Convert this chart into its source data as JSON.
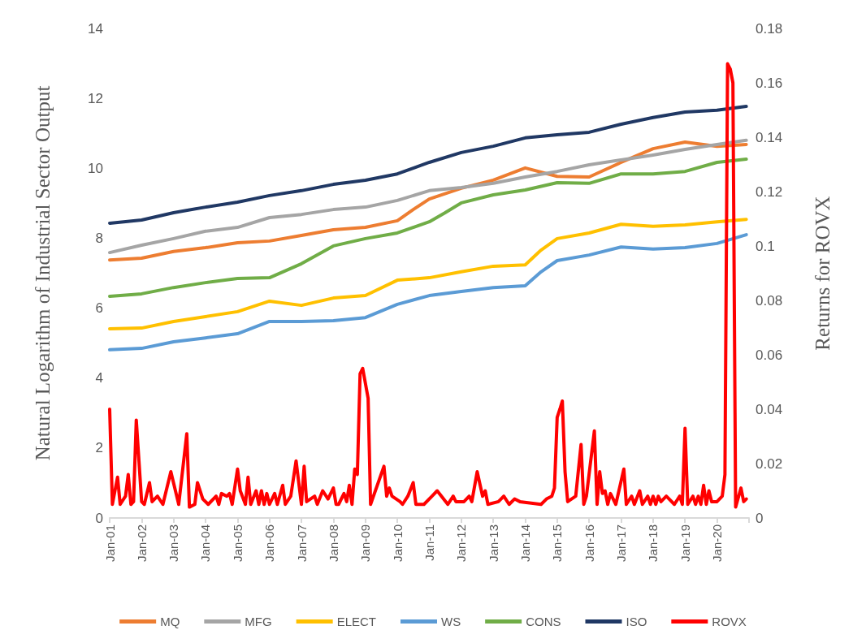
{
  "chart_data": {
    "type": "line",
    "ylabel": "Natural Logarithm of Industrial Sector Output",
    "y2label": "Returns for ROVX",
    "xlim": [
      "2001-01",
      "2021-01"
    ],
    "xticks": [
      {
        "value": "2001-01",
        "label": "Jan-01"
      },
      {
        "value": "2002-01",
        "label": "Jan-02"
      },
      {
        "value": "2003-01",
        "label": "Jan-03"
      },
      {
        "value": "2004-01",
        "label": "Jan-04"
      },
      {
        "value": "2005-01",
        "label": "Jan-05"
      },
      {
        "value": "2006-01",
        "label": "Jan-06"
      },
      {
        "value": "2007-01",
        "label": "Jan-07"
      },
      {
        "value": "2008-01",
        "label": "Jan-08"
      },
      {
        "value": "2009-01",
        "label": "Jan-09"
      },
      {
        "value": "2010-01",
        "label": "Jan-10"
      },
      {
        "value": "2011-01",
        "label": "Jan-11"
      },
      {
        "value": "2012-01",
        "label": "Jan-12"
      },
      {
        "value": "2013-01",
        "label": "Jan-13"
      },
      {
        "value": "2014-01",
        "label": "Jan-14"
      },
      {
        "value": "2015-01",
        "label": "Jan-15"
      },
      {
        "value": "2016-01",
        "label": "Jan-16"
      },
      {
        "value": "2017-01",
        "label": "Jan-17"
      },
      {
        "value": "2018-01",
        "label": "Jan-18"
      },
      {
        "value": "2019-01",
        "label": "Jan-19"
      },
      {
        "value": "2020-01",
        "label": "Jan-20"
      },
      {
        "value": "2021-01",
        "label": null
      }
    ],
    "ylim": [
      0,
      14
    ],
    "yticks": [
      0,
      2,
      4,
      6,
      8,
      10,
      12,
      14
    ],
    "y2lim": [
      0,
      0.18
    ],
    "y2ticks": [
      0,
      0.02,
      0.04,
      0.06,
      0.08,
      0.1,
      0.12,
      0.14,
      0.16,
      0.18
    ],
    "grid": false,
    "legend": "bottom",
    "marker": "none",
    "line_style": "solid",
    "series": [
      {
        "name": "MQ",
        "color": "#ed7d31",
        "x": [
          "2001-01",
          "2002-01",
          "2003-01",
          "2004-01",
          "2005-01",
          "2006-01",
          "2007-01",
          "2008-01",
          "2009-01",
          "2010-01",
          "2010-07",
          "2011-01",
          "2012-01",
          "2013-01",
          "2014-01",
          "2015-01",
          "2016-01",
          "2017-01",
          "2018-01",
          "2019-01",
          "2020-01",
          "2020-12"
        ],
        "values": [
          7.38,
          7.43,
          7.62,
          7.73,
          7.87,
          7.92,
          8.08,
          8.24,
          8.31,
          8.5,
          8.82,
          9.12,
          9.43,
          9.66,
          10.01,
          9.77,
          9.75,
          10.17,
          10.56,
          10.75,
          10.63,
          10.68
        ]
      },
      {
        "name": "MFG",
        "color": "#a5a5a5",
        "x": [
          "2001-01",
          "2002-01",
          "2003-01",
          "2004-01",
          "2005-01",
          "2006-01",
          "2007-01",
          "2008-01",
          "2009-01",
          "2010-01",
          "2011-01",
          "2012-01",
          "2013-01",
          "2014-01",
          "2015-01",
          "2016-01",
          "2017-01",
          "2018-01",
          "2019-01",
          "2020-01",
          "2020-12"
        ],
        "values": [
          7.59,
          7.8,
          7.99,
          8.2,
          8.31,
          8.59,
          8.68,
          8.82,
          8.89,
          9.08,
          9.36,
          9.45,
          9.57,
          9.75,
          9.91,
          10.1,
          10.24,
          10.38,
          10.54,
          10.68,
          10.8
        ]
      },
      {
        "name": "ELECT",
        "color": "#ffc000",
        "x": [
          "2001-01",
          "2002-01",
          "2003-01",
          "2004-01",
          "2005-01",
          "2006-01",
          "2007-01",
          "2008-01",
          "2009-01",
          "2010-01",
          "2011-01",
          "2012-01",
          "2013-01",
          "2014-01",
          "2014-07",
          "2015-01",
          "2016-01",
          "2017-01",
          "2018-01",
          "2019-01",
          "2020-01",
          "2020-12"
        ],
        "values": [
          5.41,
          5.43,
          5.62,
          5.76,
          5.9,
          6.2,
          6.08,
          6.29,
          6.36,
          6.8,
          6.87,
          7.04,
          7.2,
          7.24,
          7.66,
          7.99,
          8.15,
          8.4,
          8.34,
          8.38,
          8.47,
          8.54
        ]
      },
      {
        "name": "WS",
        "color": "#5b9bd5",
        "x": [
          "2001-01",
          "2002-01",
          "2003-01",
          "2004-01",
          "2005-01",
          "2006-01",
          "2007-01",
          "2008-01",
          "2009-01",
          "2010-01",
          "2011-01",
          "2012-01",
          "2013-01",
          "2014-01",
          "2014-07",
          "2015-01",
          "2016-01",
          "2017-01",
          "2018-01",
          "2019-01",
          "2020-01",
          "2020-12"
        ],
        "values": [
          4.81,
          4.85,
          5.04,
          5.15,
          5.27,
          5.62,
          5.62,
          5.64,
          5.73,
          6.11,
          6.36,
          6.48,
          6.59,
          6.64,
          7.04,
          7.36,
          7.52,
          7.75,
          7.69,
          7.73,
          7.85,
          8.1
        ]
      },
      {
        "name": "CONS",
        "color": "#70ad47",
        "x": [
          "2001-01",
          "2002-01",
          "2003-01",
          "2004-01",
          "2005-01",
          "2006-01",
          "2007-01",
          "2008-01",
          "2009-01",
          "2010-01",
          "2011-01",
          "2011-07",
          "2012-01",
          "2013-01",
          "2014-01",
          "2015-01",
          "2016-01",
          "2017-01",
          "2018-01",
          "2019-01",
          "2020-01",
          "2020-12"
        ],
        "values": [
          6.34,
          6.41,
          6.59,
          6.73,
          6.85,
          6.87,
          7.27,
          7.78,
          7.99,
          8.15,
          8.47,
          8.73,
          9.01,
          9.24,
          9.38,
          9.59,
          9.57,
          9.84,
          9.84,
          9.91,
          10.17,
          10.26
        ]
      },
      {
        "name": "ISO",
        "color": "#203864",
        "x": [
          "2001-01",
          "2002-01",
          "2003-01",
          "2004-01",
          "2005-01",
          "2006-01",
          "2007-01",
          "2008-01",
          "2009-01",
          "2010-01",
          "2011-01",
          "2012-01",
          "2013-01",
          "2014-01",
          "2015-01",
          "2016-01",
          "2017-01",
          "2018-01",
          "2019-01",
          "2020-01",
          "2020-12"
        ],
        "values": [
          8.43,
          8.52,
          8.73,
          8.89,
          9.03,
          9.22,
          9.36,
          9.54,
          9.66,
          9.84,
          10.17,
          10.45,
          10.63,
          10.87,
          10.96,
          11.03,
          11.26,
          11.45,
          11.61,
          11.66,
          11.77
        ]
      },
      {
        "name": "ROVX",
        "color": "#ff0000",
        "axis": "y2",
        "x": [
          "2001-01",
          "2001-02",
          "2001-04",
          "2001-05",
          "2001-07",
          "2001-08",
          "2001-09",
          "2001-10",
          "2001-11",
          "2002-01",
          "2002-02",
          "2002-04",
          "2002-05",
          "2002-07",
          "2002-09",
          "2002-12",
          "2003-03",
          "2003-06",
          "2003-07",
          "2003-09",
          "2003-10",
          "2003-12",
          "2004-02",
          "2004-05",
          "2004-06",
          "2004-07",
          "2004-09",
          "2004-10",
          "2004-11",
          "2005-01",
          "2005-02",
          "2005-04",
          "2005-05",
          "2005-06",
          "2005-08",
          "2005-09",
          "2005-10",
          "2005-11",
          "2005-12",
          "2006-01",
          "2006-03",
          "2006-04",
          "2006-06",
          "2006-07",
          "2006-09",
          "2006-11",
          "2007-01",
          "2007-02",
          "2007-03",
          "2007-06",
          "2007-07",
          "2007-09",
          "2007-11",
          "2008-01",
          "2008-02",
          "2008-03",
          "2008-05",
          "2008-06",
          "2008-07",
          "2008-08",
          "2008-09",
          "2008-10",
          "2008-11",
          "2008-12",
          "2009-02",
          "2009-03",
          "2009-08",
          "2009-09",
          "2009-10",
          "2009-11",
          "2010-02",
          "2010-03",
          "2010-05",
          "2010-07",
          "2010-08",
          "2010-11",
          "2011-02",
          "2011-04",
          "2011-08",
          "2011-10",
          "2011-11",
          "2012-02",
          "2012-04",
          "2012-05",
          "2012-07",
          "2012-09",
          "2012-10",
          "2012-11",
          "2013-03",
          "2013-05",
          "2013-07",
          "2013-09",
          "2013-11",
          "2014-07",
          "2014-09",
          "2014-11",
          "2014-12",
          "2015-01",
          "2015-02",
          "2015-03",
          "2015-04",
          "2015-05",
          "2015-08",
          "2015-10",
          "2015-11",
          "2015-12",
          "2016-03",
          "2016-04",
          "2016-05",
          "2016-06",
          "2016-07",
          "2016-08",
          "2016-09",
          "2016-11",
          "2017-02",
          "2017-03",
          "2017-05",
          "2017-06",
          "2017-08",
          "2017-09",
          "2017-11",
          "2017-12",
          "2018-01",
          "2018-02",
          "2018-03",
          "2018-04",
          "2018-06",
          "2018-09",
          "2018-11",
          "2018-12",
          "2019-01",
          "2019-02",
          "2019-04",
          "2019-05",
          "2019-06",
          "2019-07",
          "2019-08",
          "2019-09",
          "2019-10",
          "2019-11",
          "2020-01",
          "2020-03",
          "2020-04",
          "2020-05",
          "2020-06",
          "2020-07",
          "2020-08",
          "2020-10",
          "2020-11",
          "2020-12"
        ],
        "values": [
          0.04,
          0.005,
          0.015,
          0.005,
          0.008,
          0.016,
          0.005,
          0.006,
          0.036,
          0.006,
          0.005,
          0.013,
          0.006,
          0.008,
          0.005,
          0.017,
          0.005,
          0.031,
          0.004,
          0.005,
          0.013,
          0.007,
          0.005,
          0.008,
          0.005,
          0.009,
          0.008,
          0.009,
          0.005,
          0.018,
          0.01,
          0.005,
          0.015,
          0.005,
          0.01,
          0.005,
          0.01,
          0.005,
          0.009,
          0.005,
          0.009,
          0.005,
          0.012,
          0.005,
          0.008,
          0.021,
          0.005,
          0.019,
          0.006,
          0.008,
          0.005,
          0.01,
          0.007,
          0.011,
          0.005,
          0.005,
          0.009,
          0.006,
          0.012,
          0.005,
          0.018,
          0.016,
          0.053,
          0.055,
          0.044,
          0.005,
          0.019,
          0.008,
          0.011,
          0.008,
          0.006,
          0.005,
          0.008,
          0.013,
          0.005,
          0.005,
          0.008,
          0.01,
          0.005,
          0.008,
          0.006,
          0.006,
          0.008,
          0.006,
          0.017,
          0.008,
          0.01,
          0.005,
          0.006,
          0.008,
          0.005,
          0.007,
          0.006,
          0.005,
          0.007,
          0.008,
          0.011,
          0.037,
          0.04,
          0.043,
          0.017,
          0.006,
          0.008,
          0.027,
          0.005,
          0.008,
          0.032,
          0.005,
          0.017,
          0.009,
          0.01,
          0.005,
          0.009,
          0.005,
          0.018,
          0.005,
          0.008,
          0.005,
          0.01,
          0.005,
          0.008,
          0.005,
          0.008,
          0.005,
          0.008,
          0.006,
          0.008,
          0.005,
          0.008,
          0.005,
          0.033,
          0.005,
          0.008,
          0.005,
          0.008,
          0.005,
          0.012,
          0.005,
          0.01,
          0.006,
          0.006,
          0.008,
          0.016,
          0.167,
          0.165,
          0.16,
          0.004,
          0.011,
          0.006,
          0.007
        ]
      }
    ]
  }
}
